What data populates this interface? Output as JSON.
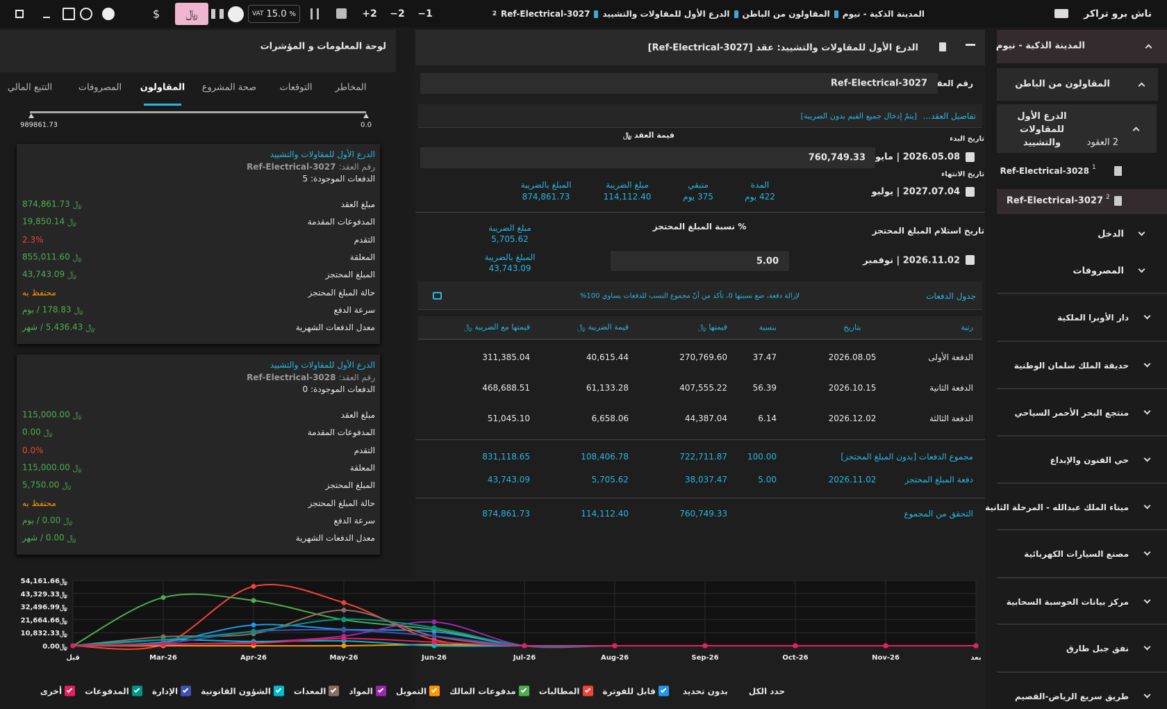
{
  "top_bar": {
    "app_name": "ناش برو تراكر",
    "breadcrumb": [
      "المدينة الذكية - نيوم",
      "المقاولون من الباطن",
      "الدرع الأول للمقاولات والتشييد",
      "Ref-Electrical-3027"
    ],
    "breadcrumb_badge": "2",
    "steps": [
      "−1",
      "−2",
      "+2"
    ],
    "vat_label": "VAT",
    "vat_value": "15.0",
    "vat_unit": "%",
    "currency_sar": "﷼",
    "currency_usd": "$"
  },
  "sidebar": {
    "project": "المدينة الذكية - نيوم",
    "section": "المقاولون من الباطن",
    "contractor": "الدرع الأول للمقاولات والتشييد",
    "contractor_count": "2 العقود",
    "contracts": [
      {
        "ref": "Ref-Electrical-3028",
        "badge": "1"
      },
      {
        "ref": "Ref-Electrical-3027",
        "badge": "2"
      }
    ],
    "groups": [
      "الدخل",
      "المصروفات"
    ],
    "projects": [
      "دار الأوبرا الملكية",
      "حديقة الملك سلمان الوطنية",
      "منتجع البحر الأحمر السياحي",
      "حي الفنون والإبداع",
      "ميناء الملك عبدالله - المرحلة الثانية",
      "مصنع السيارات الكهربائية",
      "مركز بيانات الحوسبة السحابية",
      "نفق جبل طارق",
      "طريق سريع الرياض-القصيم"
    ]
  },
  "contract": {
    "title": "الدرع الأول للمقاولات والتشييد: عقد [Ref-Electrical-3027]",
    "number_label": "رقم العقد",
    "number": "Ref-Electrical-3027",
    "details_link": "تفاصيل العقد...",
    "details_note": "[يتمّ إدخال جميع القيم بدون الضريبة]",
    "start_label": "تاريخ البدء",
    "start_date": "2026.05.08 | مايو",
    "value_label": "قيمة العقد ﷼",
    "value": "760,749.33",
    "end_label": "تاريخ الانتهاء",
    "end_date": "2027.07.04 | يوليو",
    "stats": [
      {
        "label": "المدة",
        "value": "422 يوم"
      },
      {
        "label": "متبقي",
        "value": "375 يوم"
      },
      {
        "label": "مبلغ الضريبة",
        "value": "114,112.40"
      },
      {
        "label": "المبلغ بالضريبة",
        "value": "874,861.73"
      }
    ],
    "retention_date_label": "تاريخ استلام المبلغ المحتجز",
    "retention_date": "2026.11.02 | نوفمبر",
    "retention_pct_label": "نسبة المبلغ المحتجز %",
    "retention_pct": "5.00",
    "retention_tax_label": "مبلغ الضريبة",
    "retention_tax": "5,705.62",
    "retention_total_label": "المبلغ بالضريبة",
    "retention_total": "43,743.09",
    "schedule_title": "جدول الدفعات",
    "schedule_note": "لإزالة دفعة، ضع نسبتها 0، تأكد من أنّ مجموع النسب للدفعات يساوي 100%",
    "columns": [
      "رتبة",
      "بتاريخ",
      "بنسبة",
      "قيمتها ﷼",
      "قيمة الضريبة ﷼",
      "قيمتها مع الضريبة ﷼"
    ],
    "rows": [
      [
        "الدفعة الأولى",
        "2026.08.05",
        "37.47",
        "270,769.60",
        "40,615.44",
        "311,385.04"
      ],
      [
        "الدفعة الثانية",
        "2026.10.15",
        "56.39",
        "407,555.22",
        "61,133.28",
        "468,688.51"
      ],
      [
        "الدفعة الثالثة",
        "2026.12.02",
        "6.14",
        "44,387.04",
        "6,658.06",
        "51,045.10"
      ]
    ],
    "total": {
      "label": "مجموع الدفعات [بدون المبلغ المحتجز]",
      "percent": "100.00",
      "value": "722,711.87",
      "tax": "108,406.78",
      "total": "831,118.65"
    },
    "retention": {
      "label": "دفعة المبلغ المحتجز",
      "date": "2026.11.02",
      "percent": "5.00",
      "value": "38,037.47",
      "tax": "5,705.62",
      "total": "43,743.09"
    },
    "check": {
      "label": "التحقق من المجموع",
      "value": "760,749.33",
      "tax": "114,112.40",
      "total": "874,861.73"
    }
  },
  "dashboard": {
    "title": "لوحة المعلومات و المؤشرات",
    "tabs": [
      "المخاطر",
      "التوقعات",
      "صحة المشروع",
      "المقاولون",
      "المصروفات",
      "التتبع المالي"
    ],
    "active_tab": "المقاولون",
    "slider_min": "989861.73",
    "slider_max": "0.0",
    "cards": [
      {
        "name": "الدرع الأول للمقاولات والتشييد",
        "ref_label": "رقم العقد:",
        "ref": "Ref-Electrical-3027",
        "payments": "الدفعات الموجودة: 5",
        "rows": [
          [
            "مبلغ العقد",
            "﷼ 874,861.73"
          ],
          [
            "المدفوعات المقدمة",
            "﷼ 19,850.14"
          ],
          [
            "التقدم",
            "2.3%"
          ],
          [
            "المعلقة",
            "﷼ 855,011.60"
          ],
          [
            "المبلغ المحتجز",
            "﷼ 43,743.09"
          ],
          [
            "حالة المبلغ المحتجز",
            "محتفظ به"
          ],
          [
            "سرعة الدفع",
            "﷼ 178.83 / يوم"
          ],
          [
            "معدل الدفعات الشهرية",
            "﷼ 5,436.43 / شهر"
          ]
        ]
      },
      {
        "name": "الدرع الأول للمقاولات والتشييد",
        "ref_label": "رقم العقد:",
        "ref": "Ref-Electrical-3028",
        "payments": "الدفعات الموجودة: 0",
        "rows": [
          [
            "مبلغ العقد",
            "﷼ 115,000.00"
          ],
          [
            "المدفوعات المقدمة",
            "﷼ 0.00"
          ],
          [
            "التقدم",
            "0.0%"
          ],
          [
            "المعلقة",
            "﷼ 115,000.00"
          ],
          [
            "المبلغ المحتجز",
            "﷼ 5,750.00"
          ],
          [
            "حالة المبلغ المحتجز",
            "محتفظ به"
          ],
          [
            "سرعة الدفع",
            "﷼ 0.00 / يوم"
          ],
          [
            "معدل الدفعات الشهرية",
            "﷼ 0.00 / شهر"
          ]
        ]
      }
    ],
    "select_all": "حدد الكل",
    "select_none": "بدون تحديد"
  },
  "chart_data": {
    "type": "line",
    "categories": [
      "قبل",
      "Mar-26",
      "Apr-26",
      "May-26",
      "Jun-26",
      "Jul-26",
      "Aug-26",
      "Sep-26",
      "Oct-26",
      "Nov-26",
      "بعد"
    ],
    "ylim": [
      0,
      54161.66
    ],
    "yticks": [
      {
        "value": 0,
        "label": "﷼0.00"
      },
      {
        "value": 10832.33,
        "label": "﷼10,832.33"
      },
      {
        "value": 21664.66,
        "label": "﷼21,664.66"
      },
      {
        "value": 32496.99,
        "label": "﷼32,496.99"
      },
      {
        "value": 43329.33,
        "label": "﷼43,329.33"
      },
      {
        "value": 54161.66,
        "label": "﷼54,161.66"
      }
    ],
    "grid": true,
    "series": [
      {
        "name": "قابل للفوترة",
        "color": "#2196f3",
        "values": [
          0,
          3000,
          17200,
          13500,
          11700,
          0,
          0,
          0,
          0,
          0,
          0
        ]
      },
      {
        "name": "المطالبات",
        "color": "#f44336",
        "values": [
          0,
          1000,
          49200,
          35700,
          5000,
          0,
          0,
          0,
          0,
          0,
          0
        ]
      },
      {
        "name": "مدفوعات المالك",
        "color": "#4caf50",
        "values": [
          0,
          40000,
          37500,
          21500,
          13500,
          0,
          0,
          0,
          0,
          0,
          0
        ]
      },
      {
        "name": "التمويل",
        "color": "#ff9800",
        "values": [
          0,
          0,
          0,
          0,
          1000,
          0,
          0,
          0,
          0,
          0,
          0
        ]
      },
      {
        "name": "المواد",
        "color": "#9c27b0",
        "values": [
          0,
          1000,
          3000,
          8000,
          19700,
          0,
          0,
          0,
          0,
          0,
          0
        ]
      },
      {
        "name": "المعدات",
        "color": "#8d6e63",
        "values": [
          0,
          7400,
          10000,
          29500,
          8000,
          0,
          0,
          0,
          0,
          0,
          0
        ]
      },
      {
        "name": "الشؤون القانونية",
        "color": "#00bcd4",
        "values": [
          0,
          4900,
          3500,
          4000,
          0,
          0,
          0,
          0,
          0,
          0,
          0
        ]
      },
      {
        "name": "الإدارة",
        "color": "#3f51b5",
        "values": [
          0,
          2000,
          11700,
          13000,
          8000,
          0,
          0,
          0,
          0,
          0,
          0
        ]
      },
      {
        "name": "المدفوعات",
        "color": "#009688",
        "values": [
          0,
          5000,
          12000,
          22000,
          15000,
          0,
          0,
          0,
          0,
          0,
          0
        ]
      },
      {
        "name": "أخرى",
        "color": "#e91e63",
        "values": [
          0,
          1500,
          2000,
          6000,
          3000,
          0,
          0,
          0,
          0,
          0,
          0
        ]
      }
    ]
  }
}
